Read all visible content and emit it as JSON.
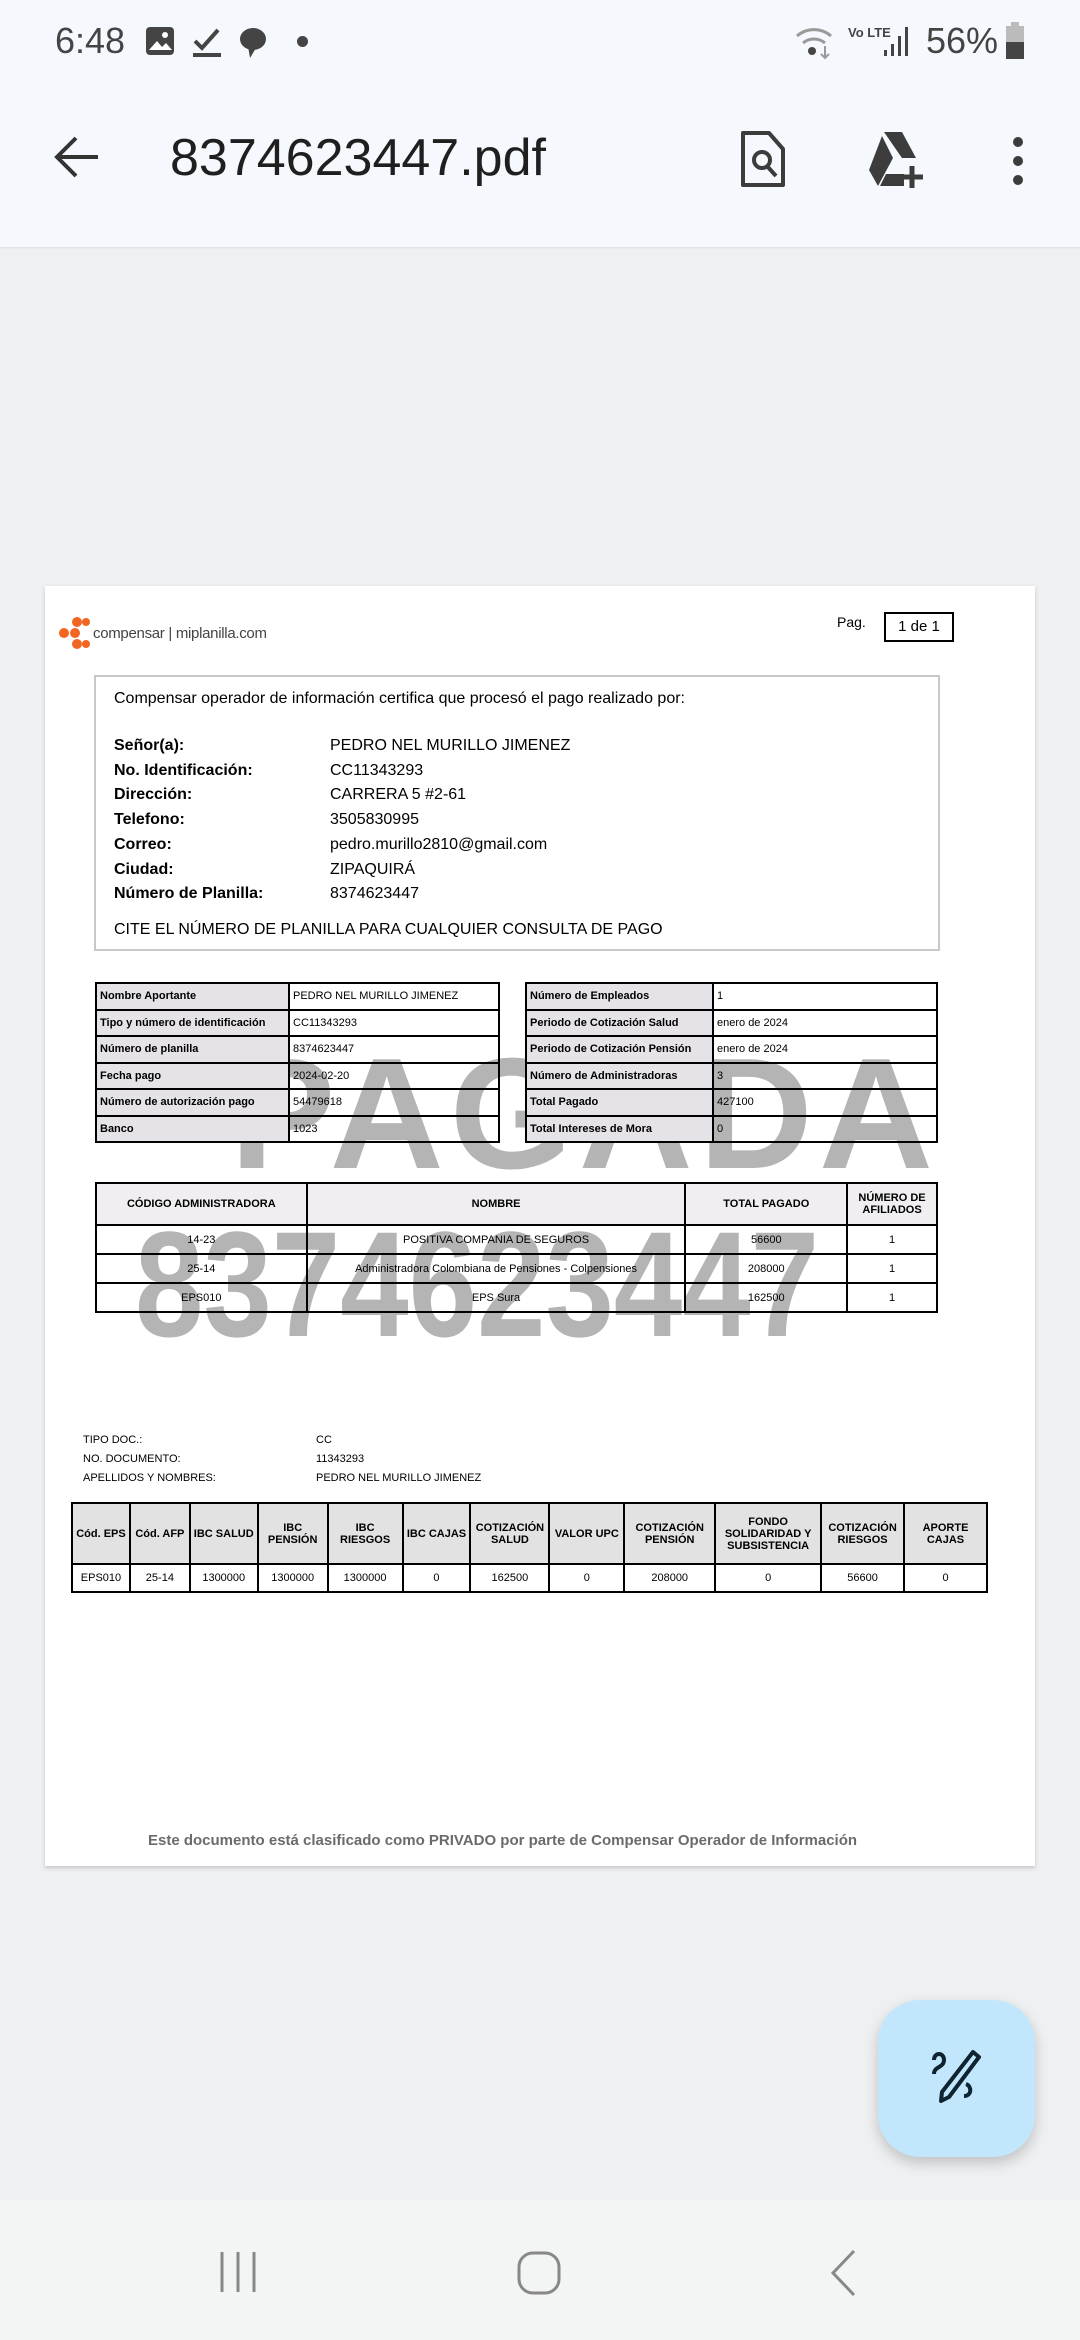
{
  "status_bar": {
    "time": "6:48",
    "battery": "56%",
    "network": "Vo LTE",
    "icons": [
      "image-icon",
      "download-done-icon",
      "chat-icon",
      "dot-icon",
      "wifi-icon",
      "signal-icon",
      "battery-icon"
    ]
  },
  "app_bar": {
    "title": "8374623447.pdf",
    "icons": [
      "back-arrow-icon",
      "find-in-document-icon",
      "add-to-drive-icon",
      "more-vert-icon"
    ]
  },
  "document": {
    "logo": "compensar | miplanilla.com",
    "page_label": "Pag.",
    "page_value": "1 de 1",
    "intro": "Compensar operador de información certifica que procesó el pago realizado por:",
    "fields": [
      {
        "label": "Señor(a):",
        "value": "PEDRO NEL MURILLO JIMENEZ"
      },
      {
        "label": "No. Identificación:",
        "value": "CC11343293"
      },
      {
        "label": "Dirección:",
        "value": "CARRERA 5 #2-61"
      },
      {
        "label": "Telefono:",
        "value": "3505830995"
      },
      {
        "label": "Correo:",
        "value": "pedro.murillo2810@gmail.com"
      },
      {
        "label": "Ciudad:",
        "value": "ZIPAQUIRÁ"
      },
      {
        "label": "Número de Planilla:",
        "value": "8374623447"
      }
    ],
    "cite": "CITE EL NÚMERO DE PLANILLA PARA CUALQUIER CONSULTA DE PAGO",
    "left_table": [
      {
        "label": "Nombre Aportante",
        "value": "PEDRO NEL MURILLO JIMENEZ"
      },
      {
        "label": "Tipo y número de identificación",
        "value": "CC11343293"
      },
      {
        "label": "Número de planilla",
        "value": "8374623447"
      },
      {
        "label": "Fecha pago",
        "value": "2024-02-20"
      },
      {
        "label": "Número de autorización pago",
        "value": "54479618"
      },
      {
        "label": "Banco",
        "value": "1023"
      }
    ],
    "right_table": [
      {
        "label": "Número de Empleados",
        "value": "1"
      },
      {
        "label": "Periodo de Cotización Salud",
        "value": "enero de 2024"
      },
      {
        "label": "Periodo de Cotización Pensión",
        "value": "enero de 2024"
      },
      {
        "label": "Número de Administradoras",
        "value": "3"
      },
      {
        "label": "Total Pagado",
        "value": "427100"
      },
      {
        "label": "Total Intereses de Mora",
        "value": "0"
      }
    ],
    "watermark": {
      "status": "PAGADA",
      "number": "8374623447"
    },
    "admin_table": {
      "headers": [
        "CÓDIGO ADMINISTRADORA",
        "NOMBRE",
        "TOTAL PAGADO",
        "NÚMERO DE AFILIADOS"
      ],
      "rows": [
        [
          "14-23",
          "POSITIVA COMPANIA DE SEGUROS",
          "56600",
          "1"
        ],
        [
          "25-14",
          "Administradora Colombiana de Pensiones - Colpensiones",
          "208000",
          "1"
        ],
        [
          "EPS010",
          "EPS Sura",
          "162500",
          "1"
        ]
      ]
    },
    "person": [
      {
        "label": "TIPO DOC.:",
        "value": "CC"
      },
      {
        "label": "NO. DOCUMENTO:",
        "value": "11343293"
      },
      {
        "label": "APELLIDOS Y NOMBRES:",
        "value": "PEDRO NEL MURILLO JIMENEZ"
      }
    ],
    "detail_table": {
      "headers": [
        "Cód. EPS",
        "Cód. AFP",
        "IBC SALUD",
        "IBC PENSIÓN",
        "IBC RIESGOS",
        "IBC CAJAS",
        "COTIZACIÓN SALUD",
        "VALOR UPC",
        "COTIZACIÓN PENSIÓN",
        "FONDO SOLIDARIDAD Y SUBSISTENCIA",
        "COTIZACIÓN RIESGOS",
        "APORTE CAJAS"
      ],
      "row": [
        "EPS010",
        "25-14",
        "1300000",
        "1300000",
        "1300000",
        "0",
        "162500",
        "0",
        "208000",
        "0",
        "56600",
        "0"
      ]
    },
    "footer": "Este documento está clasificado como PRIVADO por parte de Compensar Operador de Información"
  },
  "fab": {
    "icon": "draw-icon"
  },
  "nav_bar": {
    "icons": [
      "recents-icon",
      "home-icon",
      "back-icon"
    ]
  },
  "colors": {
    "fab": "#c2e7fd",
    "logo": "#f26522",
    "watermark": "#b0b0b0"
  }
}
